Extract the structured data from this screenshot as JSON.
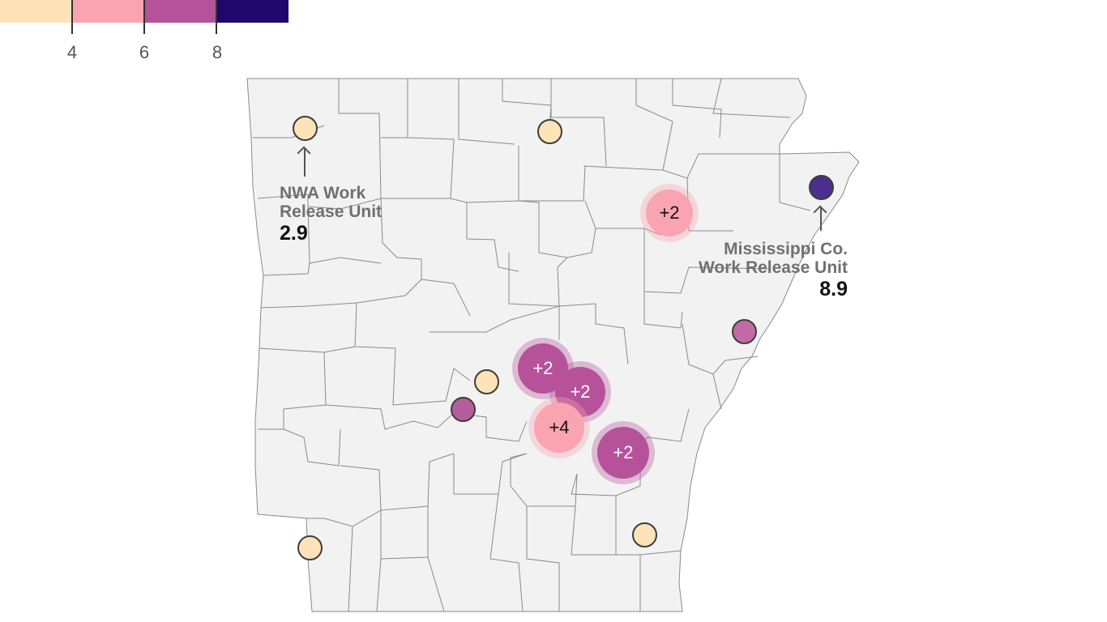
{
  "legend": {
    "colors": [
      "#fde3b7",
      "#f9a4b0",
      "#b5529a",
      "#20086b"
    ],
    "ticks": [
      "4",
      "6",
      "8"
    ]
  },
  "map": {
    "land_color": "#f2f2f2",
    "border_color": "#8a8a8a"
  },
  "facilities": [
    {
      "name": "NWA Work Release Unit",
      "value": 2.9,
      "color": "#fde3b7"
    },
    {
      "name": "",
      "value": null,
      "color": "#fde3b7"
    },
    {
      "name": "Mississippi Co. Work Release Unit",
      "value": 8.9,
      "color": "#4b2f8f"
    },
    {
      "name": "",
      "value": null,
      "color": "#c46aa7"
    },
    {
      "name": "",
      "value": null,
      "color": "#fde3b7"
    },
    {
      "name": "",
      "value": null,
      "color": "#b65d9e"
    },
    {
      "name": "",
      "value": null,
      "color": "#fde3b7"
    },
    {
      "name": "",
      "value": null,
      "color": "#fde3b7"
    }
  ],
  "clusters": [
    {
      "label": "+2",
      "color": "#f9a4b0",
      "text_color": "#111111"
    },
    {
      "label": "+2",
      "color": "#b5529a",
      "text_color": "#ffffff"
    },
    {
      "label": "+2",
      "color": "#b5529a",
      "text_color": "#ffffff"
    },
    {
      "label": "+4",
      "color": "#f9a4b0",
      "text_color": "#111111"
    },
    {
      "label": "+2",
      "color": "#b5529a",
      "text_color": "#ffffff"
    }
  ],
  "annotations": {
    "nwa": {
      "line1": "NWA Work",
      "line2": "Release Unit",
      "value": "2.9"
    },
    "mississippi": {
      "line1": "Mississippi Co.",
      "line2": "Work Release Unit",
      "value": "8.9"
    }
  }
}
